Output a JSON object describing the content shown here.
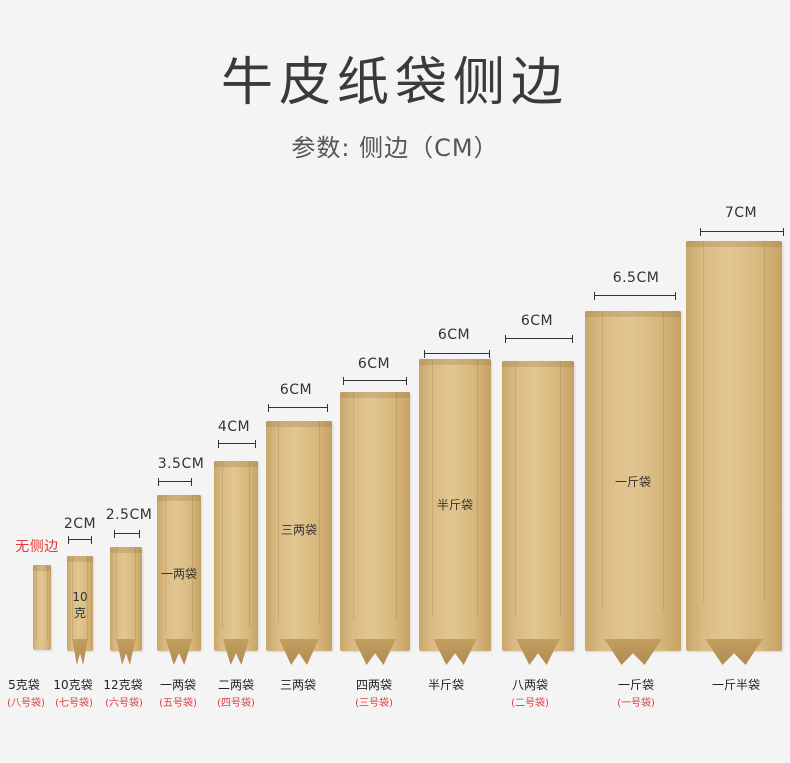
{
  "header": {
    "title": "牛皮纸袋侧边",
    "subtitle": "参数: 侧边（CM）"
  },
  "bags": [
    {
      "dimension": "无侧边",
      "name": "5克袋",
      "sub": "(八号袋)",
      "label": ""
    },
    {
      "dimension": "2CM",
      "name": "10克袋",
      "sub": "(七号袋)",
      "label": "10克"
    },
    {
      "dimension": "2.5CM",
      "name": "12克袋",
      "sub": "(六号袋)",
      "label": ""
    },
    {
      "dimension": "3.5CM",
      "name": "一两袋",
      "sub": "(五号袋)",
      "label": "一两袋"
    },
    {
      "dimension": "4CM",
      "name": "二两袋",
      "sub": "(四号袋)",
      "label": ""
    },
    {
      "dimension": "6CM",
      "name": "三两袋",
      "sub": "",
      "label": "三两袋"
    },
    {
      "dimension": "6CM",
      "name": "四两袋",
      "sub": "(三号袋)",
      "label": ""
    },
    {
      "dimension": "6CM",
      "name": "半斤袋",
      "sub": "",
      "label": "半斤袋"
    },
    {
      "dimension": "6CM",
      "name": "八两袋",
      "sub": "(二号袋)",
      "label": ""
    },
    {
      "dimension": "6.5CM",
      "name": "一斤袋",
      "sub": "(一号袋)",
      "label": "一斤袋"
    },
    {
      "dimension": "7CM",
      "name": "一斤半袋",
      "sub": "",
      "label": ""
    }
  ],
  "colors": {
    "kraft": "#d9bb84",
    "accent_red": "#e23a3a",
    "text": "#333333"
  }
}
